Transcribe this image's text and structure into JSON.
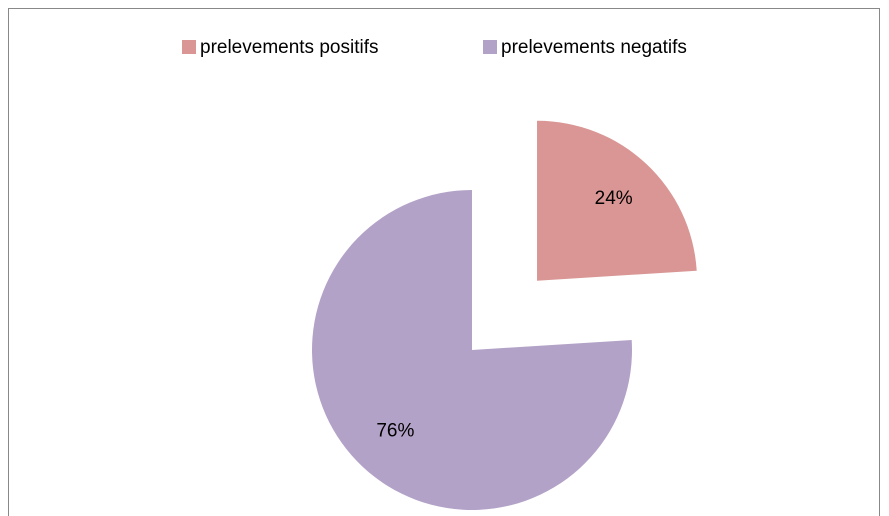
{
  "chart_data": {
    "type": "pie",
    "categories": [
      "prelevements positifs",
      "prelevements negatifs"
    ],
    "values": [
      24,
      76
    ],
    "value_labels": [
      "24%",
      "76%"
    ],
    "colors": [
      "#d99694",
      "#b3a2c7"
    ],
    "exploded": [
      true,
      false
    ],
    "legend": "top"
  }
}
